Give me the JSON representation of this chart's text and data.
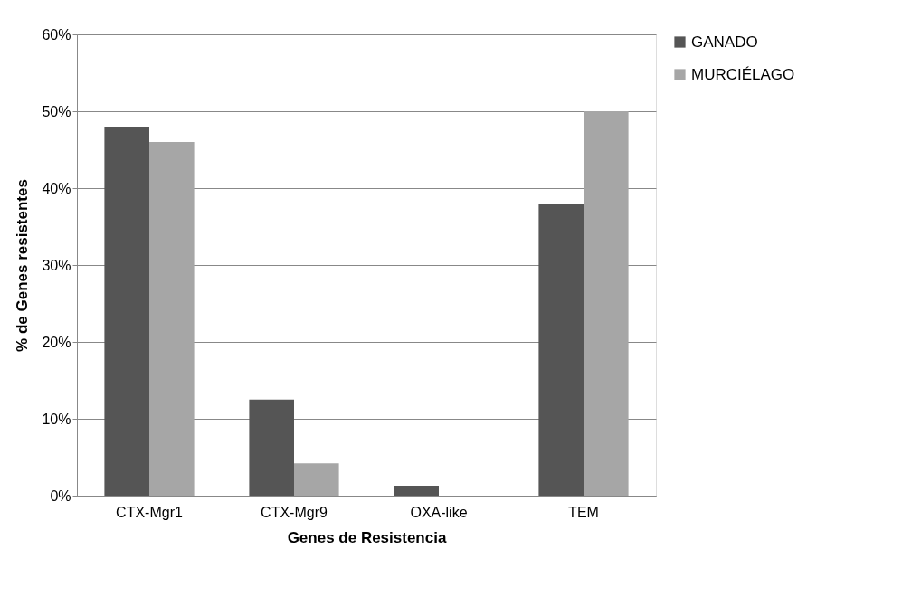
{
  "chart_data": {
    "type": "bar",
    "xlabel": "Genes de Resistencia",
    "ylabel": "% de Genes resistentes",
    "categories": [
      "CTX-Mgr1",
      "CTX-Mgr9",
      "OXA-like",
      "TEM"
    ],
    "series": [
      {
        "name": "GANADO",
        "color": "#555555",
        "values": [
          48,
          12.5,
          1.3,
          38
        ]
      },
      {
        "name": "MURCIÉLAGO",
        "color": "#a6a6a6",
        "values": [
          46,
          4.2,
          0,
          50
        ]
      }
    ],
    "ylim": [
      0,
      60
    ],
    "yticks": [
      {
        "value": 0,
        "label": "0%"
      },
      {
        "value": 10,
        "label": "10%"
      },
      {
        "value": 20,
        "label": "20%"
      },
      {
        "value": 30,
        "label": "30%"
      },
      {
        "value": 40,
        "label": "40%"
      },
      {
        "value": 50,
        "label": "50%"
      },
      {
        "value": 60,
        "label": "60%"
      }
    ],
    "grid": "y",
    "legend": "right"
  }
}
